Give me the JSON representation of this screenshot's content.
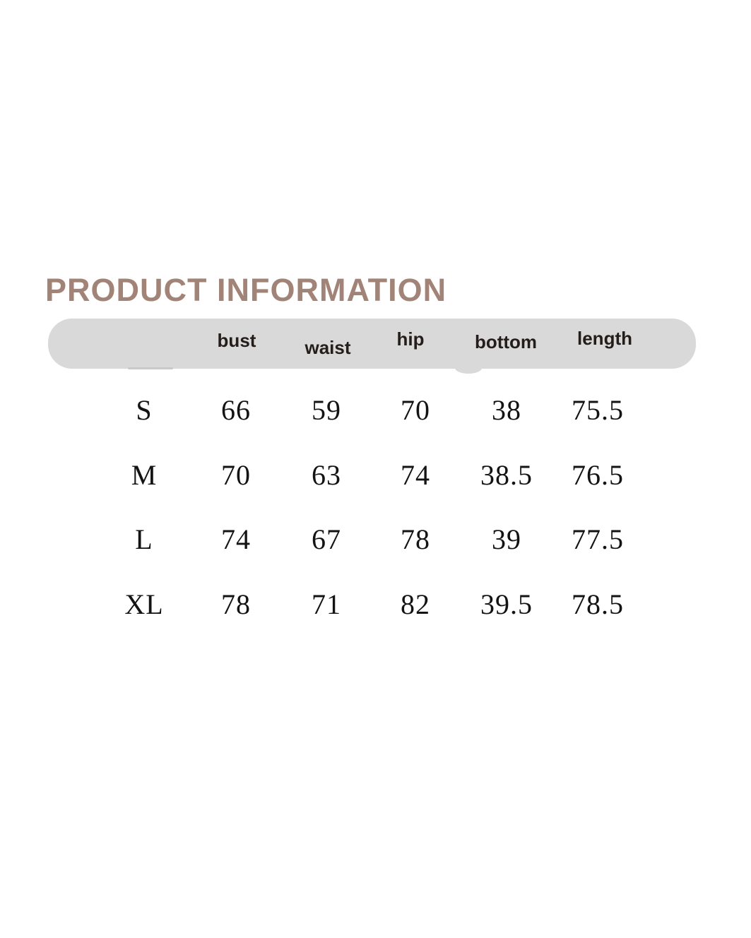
{
  "title": {
    "text": "PRODUCT INFORMATION",
    "color": "#a18477"
  },
  "size_table": {
    "header": {
      "bar_color": "#d9d9d9",
      "text_color": "#241d1a",
      "labels": {
        "bust": "bust",
        "waist": "waist",
        "hip": "hip",
        "bottom": "bottom",
        "length": "length"
      }
    },
    "rows": [
      {
        "size": "S",
        "bust": "66",
        "waist": "59",
        "hip": "70",
        "bottom": "38",
        "length": "75.5"
      },
      {
        "size": "M",
        "bust": "70",
        "waist": "63",
        "hip": "74",
        "bottom": "38.5",
        "length": "76.5"
      },
      {
        "size": "L",
        "bust": "74",
        "waist": "67",
        "hip": "78",
        "bottom": "39",
        "length": "77.5"
      },
      {
        "size": "XL",
        "bust": "78",
        "waist": "71",
        "hip": "82",
        "bottom": "39.5",
        "length": "78.5"
      }
    ]
  }
}
